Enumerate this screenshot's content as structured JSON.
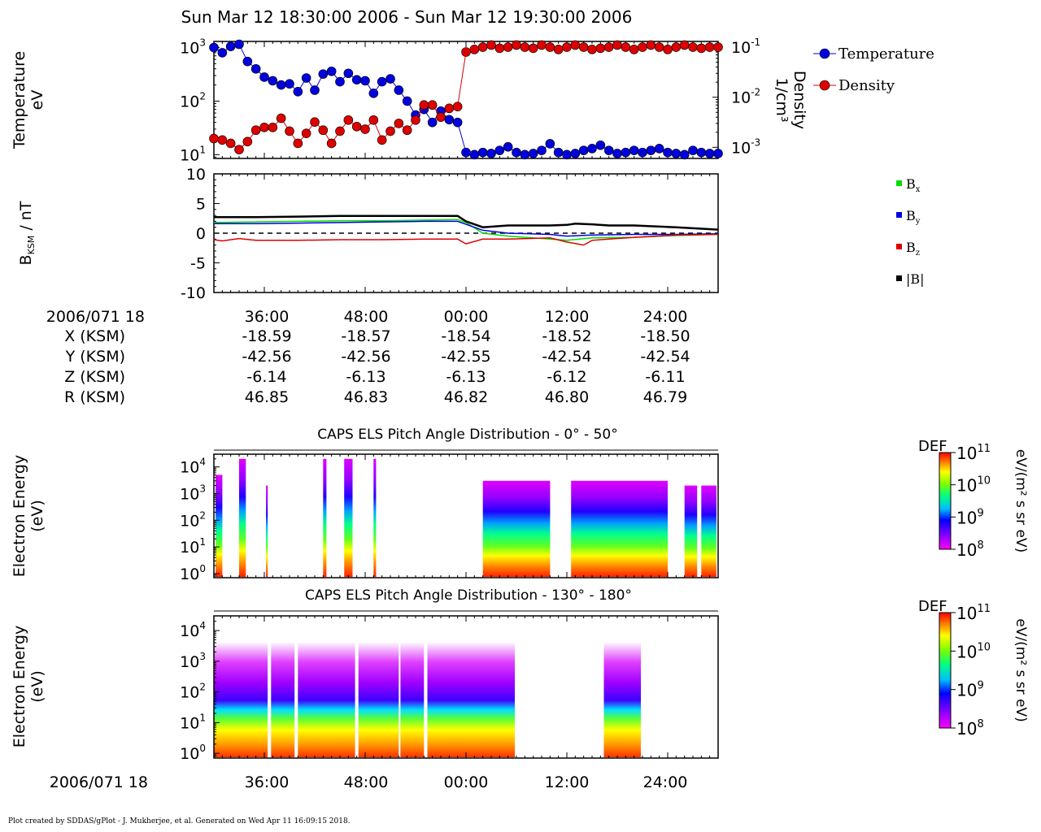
{
  "title": "Sun Mar 12 18:30:00 2006 - Sun Mar 12 19:30:00 2006",
  "footer": "Plot created by SDDAS/gPlot - J. Mukherjee, et al.  Generated on Wed Apr 11 16:09:15 2018.",
  "chart_data": [
    {
      "type": "line",
      "panel": "plasma-moments",
      "ylabel": "Temperature\neV",
      "y2label": "Density\n1/cm³",
      "yscale": "log",
      "ylim": [
        8.5,
        1300
      ],
      "yticks": [
        10,
        100,
        1000
      ],
      "ytick_labels": [
        "10",
        "10",
        "10"
      ],
      "ytick_exps": [
        "1",
        "2",
        "3"
      ],
      "y2scale": "log",
      "y2lim": [
        0.0006,
        0.13
      ],
      "y2ticks": [
        0.001,
        0.01,
        0.1
      ],
      "y2tick_labels": [
        "10",
        "10",
        "10"
      ],
      "y2tick_exps": [
        "-3",
        "-2",
        "-1"
      ],
      "xlim": [
        30,
        90
      ],
      "series": [
        {
          "name": "Temperature",
          "axis": "left",
          "color": "#0000dd",
          "x": [
            30,
            31,
            32,
            33,
            34,
            35,
            36,
            37,
            38,
            39,
            40,
            41,
            42,
            43,
            44,
            45,
            46,
            47,
            48,
            49,
            50,
            51,
            52,
            53,
            54,
            55,
            56,
            57,
            58,
            59,
            60,
            61,
            62,
            63,
            64,
            65,
            66,
            67,
            68,
            69,
            70,
            71,
            72,
            73,
            74,
            75,
            76,
            77,
            78,
            79,
            80,
            81,
            82,
            83,
            84,
            85,
            86,
            87,
            88,
            89,
            90
          ],
          "values": [
            1000,
            800,
            1050,
            1150,
            550,
            400,
            280,
            240,
            200,
            210,
            150,
            270,
            160,
            320,
            360,
            230,
            330,
            250,
            240,
            140,
            230,
            260,
            160,
            100,
            55,
            70,
            40,
            65,
            45,
            40,
            11,
            10,
            11,
            10.5,
            12,
            14,
            11,
            10,
            10.5,
            12,
            16,
            11,
            10,
            10.5,
            12,
            13,
            15,
            12,
            10.5,
            11,
            12,
            11,
            12,
            13,
            11,
            10.5,
            10,
            12,
            11,
            10.5,
            10.5
          ]
        },
        {
          "name": "Density",
          "axis": "right",
          "color": "#dd0000",
          "x": [
            30,
            31,
            32,
            33,
            34,
            35,
            36,
            37,
            38,
            39,
            40,
            41,
            42,
            43,
            44,
            45,
            46,
            47,
            48,
            49,
            50,
            51,
            52,
            53,
            54,
            55,
            56,
            57,
            58,
            59,
            60,
            61,
            62,
            63,
            64,
            65,
            66,
            67,
            68,
            69,
            70,
            71,
            72,
            73,
            74,
            75,
            76,
            77,
            78,
            79,
            80,
            81,
            82,
            83,
            84,
            85,
            86,
            87,
            88,
            89,
            90
          ],
          "values": [
            0.0015,
            0.0014,
            0.0012,
            0.0009,
            0.0013,
            0.0022,
            0.0025,
            0.0025,
            0.0038,
            0.0021,
            0.0012,
            0.0019,
            0.0032,
            0.0022,
            0.0012,
            0.0021,
            0.0035,
            0.0026,
            0.0023,
            0.0035,
            0.0014,
            0.0021,
            0.003,
            0.0022,
            0.0035,
            0.007,
            0.007,
            0.004,
            0.006,
            0.0065,
            0.08,
            0.09,
            0.1,
            0.11,
            0.095,
            0.1,
            0.11,
            0.1,
            0.095,
            0.11,
            0.1,
            0.09,
            0.1,
            0.11,
            0.1,
            0.09,
            0.095,
            0.1,
            0.11,
            0.1,
            0.09,
            0.1,
            0.11,
            0.1,
            0.09,
            0.1,
            0.11,
            0.1,
            0.095,
            0.1,
            0.1
          ]
        }
      ]
    },
    {
      "type": "line",
      "panel": "magnetic-field",
      "ylabel": "B",
      "ylabel_sub": "KSM",
      "ylabel_unit": " / nT",
      "ylim": [
        -10,
        10
      ],
      "yticks": [
        -10,
        -5,
        0,
        5,
        10
      ],
      "ytick_labels": [
        "-10",
        "-5",
        "0",
        "5",
        "10"
      ],
      "xlim": [
        30,
        90
      ],
      "zero_line": "dashed",
      "series": [
        {
          "name": "Bx",
          "label_main": "B",
          "label_sub": "x",
          "color": "#00dd00",
          "x": [
            30,
            35,
            40,
            45,
            50,
            55,
            59,
            60,
            62,
            65,
            70,
            72,
            75,
            80,
            85,
            90
          ],
          "values": [
            1.8,
            1.9,
            2.0,
            2.1,
            2.1,
            2.2,
            2.3,
            1.8,
            0.0,
            -0.5,
            -1.0,
            -1.2,
            -0.8,
            -0.7,
            -0.4,
            -0.2
          ]
        },
        {
          "name": "By",
          "label_main": "B",
          "label_sub": "y",
          "color": "#0000dd",
          "x": [
            30,
            35,
            40,
            45,
            50,
            55,
            59,
            60,
            62,
            65,
            70,
            72,
            75,
            80,
            85,
            90
          ],
          "values": [
            1.6,
            1.6,
            1.7,
            1.8,
            1.9,
            2.0,
            2.0,
            1.5,
            0.5,
            0.0,
            -0.2,
            -0.5,
            -0.3,
            -0.2,
            -0.2,
            -0.1
          ]
        },
        {
          "name": "Bz",
          "label_main": "B",
          "label_sub": "z",
          "color": "#dd0000",
          "x": [
            30,
            31,
            33,
            35,
            40,
            45,
            50,
            55,
            59,
            60,
            62,
            65,
            70,
            72,
            74,
            75,
            77,
            80,
            85,
            90
          ],
          "values": [
            -1.1,
            -1.3,
            -0.9,
            -1.2,
            -1.2,
            -1.1,
            -1.1,
            -1.0,
            -1.0,
            -1.8,
            -1.0,
            -1.0,
            -0.8,
            -1.5,
            -2.0,
            -1.2,
            -1.0,
            -0.7,
            -0.3,
            -0.2
          ]
        },
        {
          "name": "|B|",
          "label_main": "|B|",
          "label_sub": "",
          "color": "#000000",
          "x": [
            30,
            35,
            40,
            45,
            50,
            55,
            59,
            60,
            62,
            65,
            70,
            72,
            73,
            75,
            77,
            80,
            85,
            90
          ],
          "values": [
            2.7,
            2.7,
            2.8,
            2.9,
            2.9,
            2.9,
            2.9,
            2.0,
            1.0,
            1.3,
            1.3,
            1.4,
            1.6,
            1.5,
            1.3,
            1.3,
            1.0,
            0.6
          ]
        }
      ]
    },
    {
      "type": "heatmap",
      "panel": "pad-0-50",
      "title": "CAPS ELS Pitch Angle Distribution - 0° - 50°",
      "ylabel": "Electron Energy\n(eV)",
      "yscale": "log",
      "ylim": [
        0.7,
        30000
      ],
      "yticks": [
        1,
        10,
        100,
        1000,
        10000
      ],
      "ytick_labels": [
        "10",
        "10",
        "10",
        "10",
        "10"
      ],
      "ytick_exps": [
        "0",
        "1",
        "2",
        "3",
        "4"
      ],
      "xlim": [
        30,
        90
      ],
      "colorbar": {
        "title": "DEF",
        "units": "eV/(m² s sr eV)",
        "range": [
          100000000.0,
          100000000000.0
        ],
        "tick_labels": [
          "10",
          "10",
          "10",
          "10"
        ],
        "tick_exps": [
          "8",
          "9",
          "10",
          "11"
        ]
      },
      "segments": [
        {
          "x": [
            30.2,
            31.0
          ],
          "ymax": 5000
        },
        {
          "x": [
            33.0,
            33.8
          ],
          "ymax": 20000
        },
        {
          "x": [
            36.2,
            36.4
          ],
          "ymax": 2000
        },
        {
          "x": [
            43.0,
            43.4
          ],
          "ymax": 20000
        },
        {
          "x": [
            45.5,
            46.5
          ],
          "ymax": 20000
        },
        {
          "x": [
            49.0,
            49.3
          ],
          "ymax": 20000
        },
        {
          "x": [
            62.0,
            70.0
          ],
          "ymax": 3000
        },
        {
          "x": [
            72.5,
            84.0
          ],
          "ymax": 3000
        },
        {
          "x": [
            86.0,
            87.5
          ],
          "ymax": 2000
        },
        {
          "x": [
            88.0,
            89.8
          ],
          "ymax": 2000
        }
      ]
    },
    {
      "type": "heatmap",
      "panel": "pad-130-180",
      "title": "CAPS ELS Pitch Angle Distribution - 130° - 180°",
      "ylabel": "Electron Energy\n(eV)",
      "yscale": "log",
      "ylim": [
        0.7,
        30000
      ],
      "yticks": [
        1,
        10,
        100,
        1000,
        10000
      ],
      "ytick_labels": [
        "10",
        "10",
        "10",
        "10",
        "10"
      ],
      "ytick_exps": [
        "0",
        "1",
        "2",
        "3",
        "4"
      ],
      "xlim": [
        30,
        90
      ],
      "colorbar": {
        "title": "DEF",
        "units": "eV/(m² s sr eV)",
        "range": [
          100000000.0,
          100000000000.0
        ],
        "tick_labels": [
          "10",
          "10",
          "10",
          "10"
        ],
        "tick_exps": [
          "8",
          "9",
          "10",
          "11"
        ]
      },
      "segments": [
        {
          "x": [
            30.0,
            36.4
          ],
          "ymax": 20000
        },
        {
          "x": [
            36.8,
            39.6
          ],
          "ymax": 20000
        },
        {
          "x": [
            40.0,
            46.8
          ],
          "ymax": 20000
        },
        {
          "x": [
            47.2,
            52.0
          ],
          "ymax": 20000
        },
        {
          "x": [
            52.2,
            55.0
          ],
          "ymax": 20000
        },
        {
          "x": [
            55.4,
            65.8
          ],
          "ymax": 20000
        },
        {
          "x": [
            76.4,
            80.8
          ],
          "ymax": 20000
        }
      ]
    }
  ],
  "time_axis": {
    "epoch_label": "2006/071 18",
    "ticks": [
      {
        "x": 36,
        "label": "36:00"
      },
      {
        "x": 48,
        "label": "48:00"
      },
      {
        "x": 60,
        "label": "00:00"
      },
      {
        "x": 72,
        "label": "12:00"
      },
      {
        "x": 84,
        "label": "24:00"
      }
    ]
  },
  "ephemeris": [
    {
      "label": "X (KSM)",
      "values": [
        "-18.59",
        "-18.57",
        "-18.54",
        "-18.52",
        "-18.50"
      ]
    },
    {
      "label": "Y (KSM)",
      "values": [
        "-42.56",
        "-42.56",
        "-42.55",
        "-42.54",
        "-42.54"
      ]
    },
    {
      "label": "Z (KSM)",
      "values": [
        "-6.14",
        "-6.13",
        "-6.13",
        "-6.12",
        "-6.11"
      ]
    },
    {
      "label": "R (KSM)",
      "values": [
        "46.85",
        "46.83",
        "46.82",
        "46.80",
        "46.79"
      ]
    }
  ]
}
